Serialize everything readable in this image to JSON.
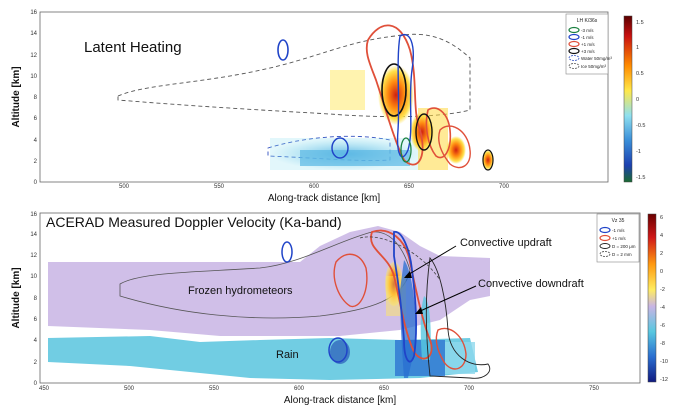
{
  "figure": {
    "panel_top": {
      "title": "Latent Heating",
      "ylabel": "Altitude [km]",
      "xlabel": "Along-track distance [km]",
      "xticks": [
        "500",
        "550",
        "600",
        "650",
        "700"
      ],
      "yticks": [
        "0",
        "2",
        "4",
        "6",
        "8",
        "10",
        "12",
        "14",
        "16"
      ],
      "legend": {
        "title": "LH K/36s",
        "items": [
          "-3 m/s",
          "-1 m/s",
          "+1 m/s",
          "+3 m/s",
          "Water 50mg/m³",
          "Ice 50mg/m³"
        ]
      },
      "colorbar": {
        "ticks": [
          "1.5",
          "1",
          "0.5",
          "0",
          "-0.5",
          "-1",
          "-1.5"
        ]
      }
    },
    "panel_bottom": {
      "title": "ACERAD Measured Doppler Velocity (Ka-band)",
      "ylabel": "Altitude [km]",
      "xlabel": "Along-track distance [km]",
      "xticks": [
        "450",
        "500",
        "550",
        "600",
        "650",
        "700",
        "750"
      ],
      "yticks": [
        "0",
        "2",
        "4",
        "6",
        "8",
        "10",
        "12",
        "14",
        "16"
      ],
      "legend": {
        "title": "Vz 35",
        "items": [
          "-1 m/s",
          "+1 m/s",
          "D = 200 μm",
          "D = 2 mm"
        ]
      },
      "colorbar": {
        "ticks": [
          "6",
          "4",
          "2",
          "0",
          "-2",
          "-4",
          "-6",
          "-8",
          "-10",
          "-12"
        ]
      },
      "annotations": {
        "updraft": "Convective updraft",
        "downdraft": "Convective downdraft",
        "frozen": "Frozen hydrometeors",
        "rain": "Rain"
      }
    }
  },
  "colors": {
    "updraft_red": "#e0503a",
    "downdraft_blue": "#2044c8",
    "frozen_lavender": "#c8b4e4",
    "rain_cyan": "#4ec0dc"
  }
}
